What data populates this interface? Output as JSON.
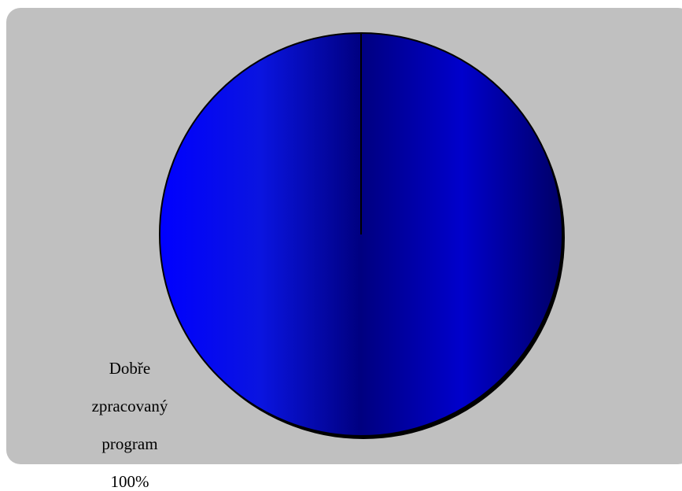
{
  "chart_data": {
    "type": "pie",
    "title": "",
    "categories": [
      "Dobře zpracovaný program"
    ],
    "values": [
      100
    ],
    "data_labels": [
      {
        "category_lines": [
          "Dobře",
          "zpracovaný",
          "program"
        ],
        "percent": "100%"
      }
    ],
    "legend": "none",
    "colors": {
      "slice_light": "#0000ff",
      "slice_dark": "#000066",
      "background": "#c0c0c0",
      "outline": "#000000"
    }
  }
}
